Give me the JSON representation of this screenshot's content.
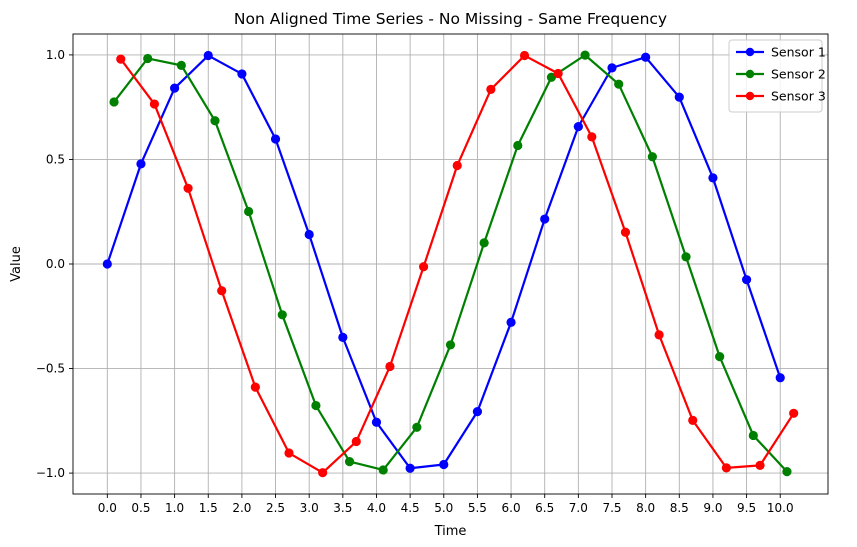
{
  "chart_data": {
    "type": "line",
    "title": "Non Aligned Time Series - No Missing - Same Frequency",
    "xlabel": "Time",
    "ylabel": "Value",
    "xlim": [
      -0.51,
      10.71
    ],
    "ylim": [
      -1.1,
      1.1
    ],
    "xticks": [
      0.0,
      0.5,
      1.0,
      1.5,
      2.0,
      2.5,
      3.0,
      3.5,
      4.0,
      4.5,
      5.0,
      5.5,
      6.0,
      6.5,
      7.0,
      7.5,
      8.0,
      8.5,
      9.0,
      9.5,
      10.0
    ],
    "xtick_labels": [
      "0.0",
      "0.5",
      "1.0",
      "1.5",
      "2.0",
      "2.5",
      "3.0",
      "3.5",
      "4.0",
      "4.5",
      "5.0",
      "5.5",
      "6.0",
      "6.5",
      "7.0",
      "7.5",
      "8.0",
      "8.5",
      "9.0",
      "9.5",
      "10.0"
    ],
    "yticks": [
      -1.0,
      -0.5,
      0.0,
      0.5,
      1.0
    ],
    "ytick_labels": [
      "−1.0",
      "−0.5",
      "0.0",
      "0.5",
      "1.0"
    ],
    "grid": true,
    "legend_position": "top-right",
    "series": [
      {
        "name": "Sensor 1",
        "color": "#0000ff",
        "x": [
          0.0,
          0.5,
          1.0,
          1.5,
          2.0,
          2.5,
          3.0,
          3.5,
          4.0,
          4.5,
          5.0,
          5.5,
          6.0,
          6.5,
          7.0,
          7.5,
          8.0,
          8.5,
          9.0,
          9.5,
          10.0
        ],
        "y": [
          0.0,
          0.479,
          0.841,
          0.997,
          0.909,
          0.598,
          0.141,
          -0.351,
          -0.757,
          -0.977,
          -0.959,
          -0.706,
          -0.279,
          0.215,
          0.657,
          0.938,
          0.989,
          0.798,
          0.412,
          -0.075,
          -0.544
        ]
      },
      {
        "name": "Sensor 2",
        "color": "#008000",
        "x": [
          0.1,
          0.6,
          1.1,
          1.6,
          2.1,
          2.6,
          3.1,
          3.6,
          4.1,
          4.6,
          5.1,
          5.6,
          6.1,
          6.6,
          7.1,
          7.6,
          8.1,
          8.6,
          9.1,
          9.6,
          10.1
        ],
        "y": [
          0.775,
          0.983,
          0.95,
          0.685,
          0.251,
          -0.243,
          -0.677,
          -0.945,
          -0.985,
          -0.781,
          -0.387,
          0.101,
          0.567,
          0.893,
          0.999,
          0.86,
          0.513,
          0.034,
          -0.443,
          -0.82,
          -0.993
        ]
      },
      {
        "name": "Sensor 3",
        "color": "#ff0000",
        "x": [
          0.2,
          0.7,
          1.2,
          1.7,
          2.2,
          2.7,
          3.2,
          3.7,
          4.2,
          4.7,
          5.2,
          5.7,
          6.2,
          6.7,
          7.2,
          7.7,
          8.2,
          8.7,
          9.2,
          9.7,
          10.2
        ],
        "y": [
          0.98,
          0.765,
          0.362,
          -0.128,
          -0.589,
          -0.904,
          -0.998,
          -0.849,
          -0.49,
          -0.013,
          0.471,
          0.835,
          0.997,
          0.911,
          0.608,
          0.152,
          -0.339,
          -0.748,
          -0.975,
          -0.963,
          -0.714
        ]
      }
    ]
  }
}
